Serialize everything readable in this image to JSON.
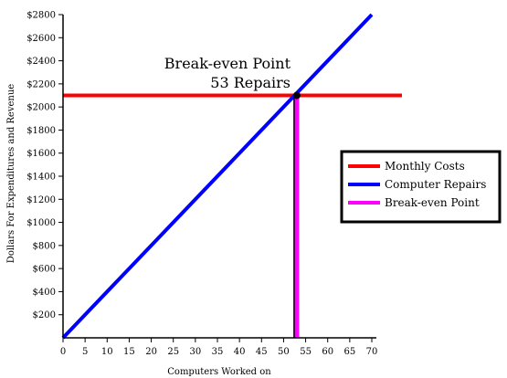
{
  "chart_data": {
    "type": "line",
    "title": "",
    "xlabel": "Computers Worked on",
    "ylabel": "Dollars For Expenditures and Revenue",
    "xlim": [
      0,
      70
    ],
    "ylim": [
      0,
      2800
    ],
    "x_ticks": [
      "0",
      "5",
      "10",
      "15",
      "20",
      "25",
      "30",
      "35",
      "40",
      "45",
      "50",
      "55",
      "60",
      "65",
      "70"
    ],
    "y_ticks": [
      "$200",
      "$400",
      "$600",
      "$800",
      "$1000",
      "$1200",
      "$1400",
      "$1600",
      "$1800",
      "$2000",
      "$2200",
      "$2400",
      "$2600",
      "$2800"
    ],
    "grid": false,
    "legend_position": "right",
    "series": [
      {
        "name": "Monthly Costs",
        "color": "#ff0000",
        "points": [
          [
            0,
            2100
          ],
          [
            70,
            2100
          ]
        ]
      },
      {
        "name": "Computer Repairs",
        "color": "#0000ff",
        "points": [
          [
            0,
            0
          ],
          [
            70,
            2800
          ]
        ]
      },
      {
        "name": "Break-even Point",
        "color": "#ff00ff",
        "points": [
          [
            53,
            0
          ],
          [
            53,
            2100
          ]
        ]
      }
    ],
    "annotation": {
      "line1": "Break-even Point",
      "line2": "53 Repairs",
      "point": [
        53,
        2100
      ]
    }
  }
}
